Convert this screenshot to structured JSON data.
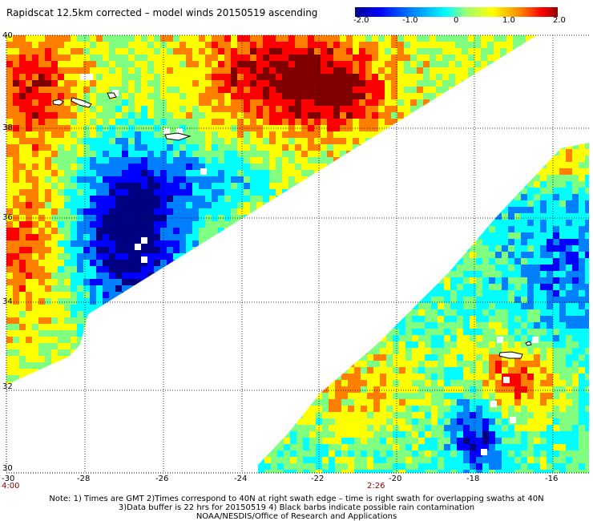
{
  "title": "Rapidscat 12.5km corrected – model winds 20150519 ascending",
  "colorbar": {
    "ticks": [
      "-2.0",
      "-1.0",
      "0",
      "1.0",
      "2.0"
    ],
    "colors": [
      "#000080",
      "#0000ff",
      "#0080ff",
      "#00ffff",
      "#80ff80",
      "#ffff00",
      "#ff8000",
      "#ff0000",
      "#800000"
    ]
  },
  "axes": {
    "lon_ticks": [
      "-30",
      "-28",
      "-26",
      "-24",
      "-22",
      "-20",
      "-18",
      "-16"
    ],
    "lat_ticks": [
      "40",
      "38",
      "36",
      "34",
      "32",
      "30"
    ]
  },
  "times": [
    "4:00",
    "2:26"
  ],
  "notes": [
    "Note: 1) Times are GMT 2)Times correspond to 40N at right swath edge – time is right swath for overlapping swaths at 40N",
    "3)Data buffer is 22 hrs for 20150519 4) Black barbs indicate possible rain contamination",
    "NOAA/NESDIS/Office of Research and Applications"
  ]
}
